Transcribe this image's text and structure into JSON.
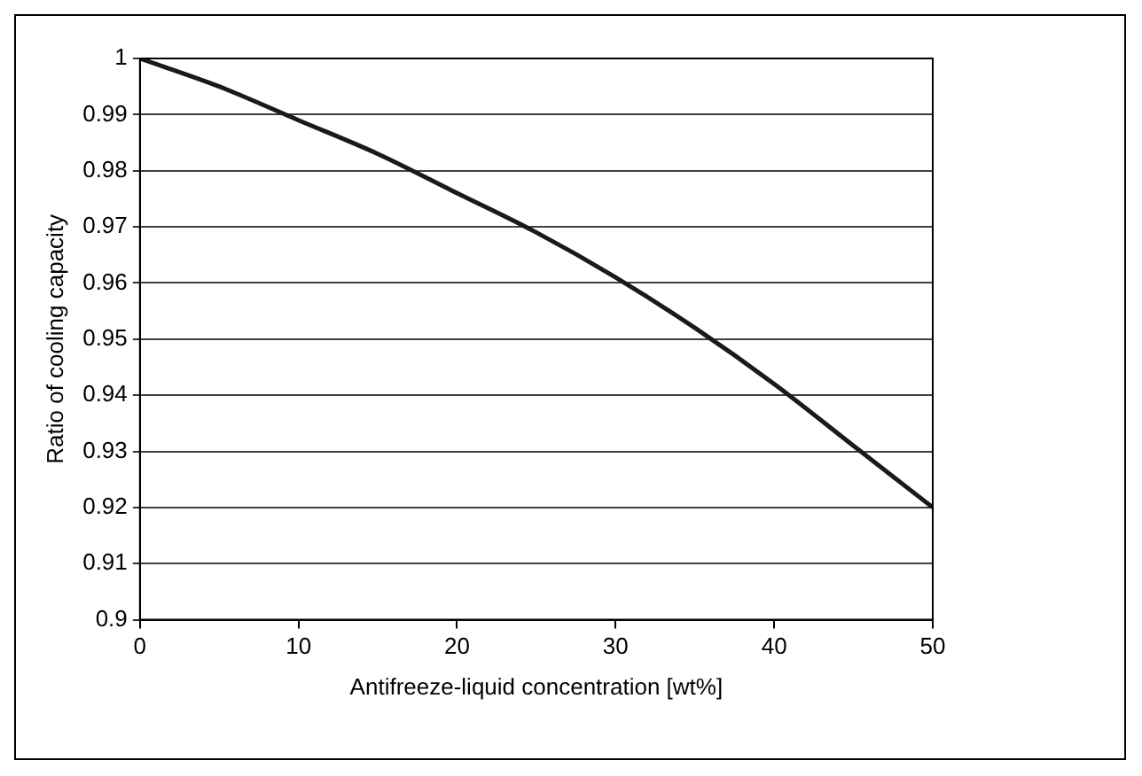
{
  "chart_data": {
    "type": "line",
    "xlabel": "Antifreeze-liquid concentration [wt%]",
    "ylabel": "Ratio of cooling capacity",
    "x": [
      0,
      5,
      10,
      15,
      20,
      25,
      30,
      35,
      40,
      45,
      50
    ],
    "series": [
      {
        "color": "#1a1a1a",
        "values": [
          1,
          0.995,
          0.989,
          0.983,
          0.976,
          0.969,
          0.961,
          0.952,
          0.942,
          0.931,
          0.92
        ]
      }
    ],
    "xlim": [
      0,
      50
    ],
    "xticks": [
      0,
      10,
      20,
      30,
      40,
      50
    ],
    "ylim": [
      0.9,
      1
    ],
    "yticks": [
      0.9,
      0.91,
      0.92,
      0.93,
      0.94,
      0.95,
      0.96,
      0.97,
      0.98,
      0.99,
      1
    ],
    "grid": "y",
    "legend": false,
    "marker": "none",
    "line_style": "solid"
  }
}
